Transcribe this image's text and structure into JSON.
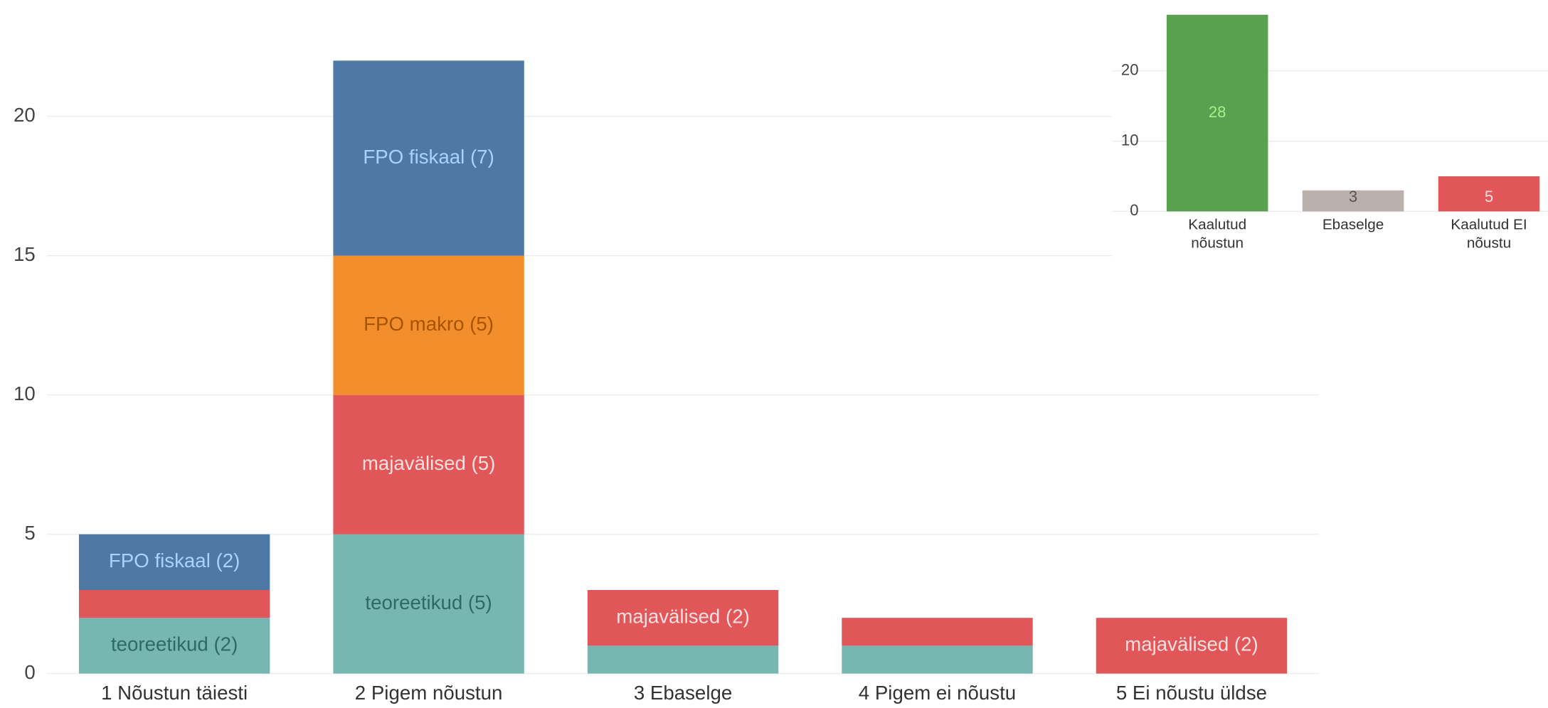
{
  "chart_data": [
    {
      "type": "bar",
      "stacked": true,
      "categories": [
        "1 Nõustun täiesti",
        "2 Pigem nõustun",
        "3 Ebaselge",
        "4 Pigem ei nõustu",
        "5 Ei nõustu üldse"
      ],
      "series": [
        {
          "color": "#76b7b2",
          "label_color": "#2e6a65",
          "values": [
            2,
            5,
            1,
            1,
            0
          ],
          "value_labels": [
            "teoreetikud (2)",
            "teoreetikud (5)",
            null,
            null,
            null
          ]
        },
        {
          "color": "#e15759",
          "label_color": "#ffe0e0",
          "values": [
            1,
            5,
            2,
            1,
            2
          ],
          "value_labels": [
            null,
            "majavälised (5)",
            "majavälised (2)",
            null,
            "majavälised (2)"
          ]
        },
        {
          "color": "#f28e2b",
          "label_color": "#a85300",
          "values": [
            0,
            5,
            0,
            0,
            0
          ],
          "value_labels": [
            null,
            "FPO makro (5)",
            null,
            null,
            null
          ]
        },
        {
          "color": "#4e79a7",
          "label_color": "#a9d2ff",
          "values": [
            2,
            7,
            0,
            0,
            0
          ],
          "value_labels": [
            "FPO fiskaal (2)",
            "FPO fiskaal (7)",
            null,
            null,
            null
          ]
        }
      ],
      "ylim": [
        0,
        24
      ],
      "yticks": [
        0,
        5,
        10,
        15,
        20
      ],
      "grid": true
    },
    {
      "type": "bar",
      "categories": [
        "Kaalutud nõustun",
        "Ebaselge",
        "Kaalutud EI nõustu"
      ],
      "values": [
        28,
        3,
        5
      ],
      "colors": [
        "#59a14f",
        "#bab0ac",
        "#e15759"
      ],
      "label_colors": [
        "#a6f08e",
        "#555555",
        "#ffe0e0"
      ],
      "ylim": [
        0,
        29.4
      ],
      "yticks": [
        0,
        10,
        20
      ],
      "grid": true
    }
  ]
}
